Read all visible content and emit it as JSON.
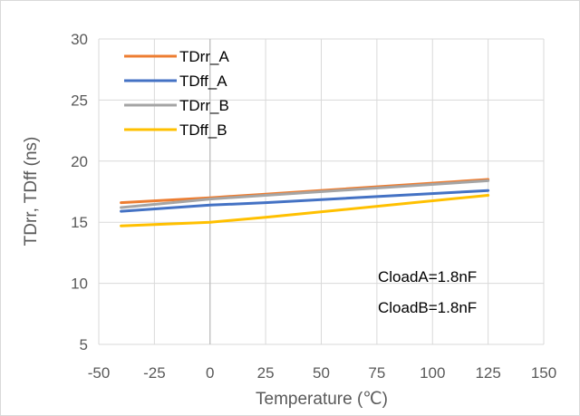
{
  "chart_data": {
    "type": "line",
    "title": "",
    "xlabel": "Temperature (℃)",
    "ylabel": "TDrr, TDff (ns)",
    "xlim": [
      -50,
      150
    ],
    "ylim": [
      5,
      30
    ],
    "xticks": [
      "-50",
      "-25",
      "0",
      "25",
      "50",
      "75",
      "100",
      "125",
      "150"
    ],
    "yticks": [
      "5",
      "10",
      "15",
      "20",
      "25",
      "30"
    ],
    "grid": true,
    "legend_position": "top-left",
    "x": [
      -40,
      0,
      25,
      125
    ],
    "series": [
      {
        "name": "TDrr_A",
        "color": "#ED7D31",
        "values": [
          16.6,
          17.0,
          17.3,
          18.5
        ]
      },
      {
        "name": "TDff_A",
        "color": "#4472C4",
        "values": [
          15.9,
          16.4,
          16.6,
          17.6
        ]
      },
      {
        "name": "TDrr_B",
        "color": "#A5A5A5",
        "values": [
          16.2,
          16.9,
          17.2,
          18.4
        ]
      },
      {
        "name": "TDff_B",
        "color": "#FFC000",
        "values": [
          14.7,
          15.0,
          15.4,
          17.2
        ]
      }
    ],
    "annotations": [
      "CloadA=1.8nF",
      "CloadB=1.8nF"
    ]
  }
}
